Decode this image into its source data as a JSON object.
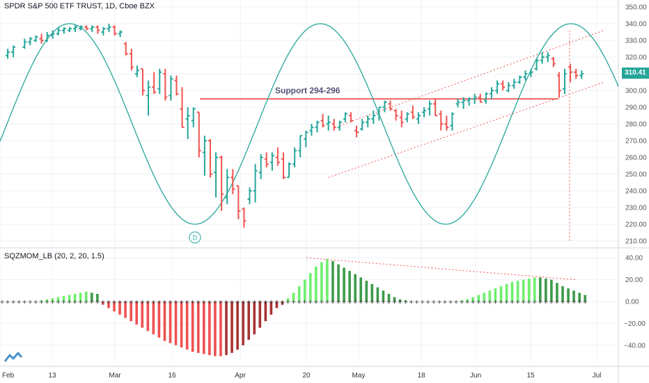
{
  "header": {
    "title": "SPDR S&P 500 ETF TRUST, 1D, Cboe BZX",
    "indicator": "SQZMOM_LB (20, 2, 20, 1.5)",
    "last_price": "310.41"
  },
  "colors": {
    "up": "#26a69a",
    "down": "#ef5350",
    "cycle": "#26a69a",
    "support": "#e53935",
    "hist_lime": "#6ef06e",
    "hist_green": "#3d9a4a",
    "hist_red": "#f05050",
    "hist_maroon": "#a83232",
    "grid": "#eef0f3"
  },
  "annotations": {
    "support_label": "Support 294-296",
    "cycle_marker": "D"
  },
  "chart_data": [
    {
      "type": "candlestick",
      "title": "SPDR S&P 500 ETF TRUST, 1D, Cboe BZX",
      "y_ticks": [
        350,
        340,
        330,
        320,
        310,
        300,
        290,
        280,
        270,
        260,
        250,
        240,
        230,
        220,
        210
      ],
      "ylim": [
        207,
        352
      ],
      "x_ticks": [
        "Feb",
        "13",
        "Mar",
        "16",
        "Apr",
        "20",
        "May",
        "18",
        "Jun",
        "15",
        "Jul"
      ],
      "bars": [
        [
          1,
          321,
          325,
          319,
          323
        ],
        [
          2,
          323,
          327,
          320,
          326
        ],
        [
          4,
          326,
          331,
          325,
          329
        ],
        [
          5,
          329,
          332,
          327,
          331
        ],
        [
          6,
          330,
          333,
          329,
          332
        ],
        [
          7,
          331,
          334,
          328,
          330
        ],
        [
          8,
          330,
          335,
          329,
          333
        ],
        [
          9,
          333,
          336,
          331,
          334
        ],
        [
          10,
          334,
          338,
          333,
          336
        ],
        [
          11,
          336,
          338,
          334,
          337
        ],
        [
          12,
          336,
          338,
          335,
          337
        ],
        [
          13,
          337,
          339,
          335,
          338
        ],
        [
          14,
          337,
          339,
          336,
          338
        ],
        [
          15,
          338,
          339,
          336,
          337
        ],
        [
          16,
          337,
          339,
          335,
          338
        ],
        [
          17,
          338,
          339,
          334,
          336
        ],
        [
          18,
          335,
          338,
          333,
          337
        ],
        [
          19,
          337,
          340,
          335,
          338
        ],
        [
          20,
          338,
          339,
          333,
          334
        ],
        [
          21,
          334,
          336,
          332,
          335
        ],
        [
          22,
          328,
          329,
          321,
          322
        ],
        [
          23,
          322,
          325,
          312,
          314
        ],
        [
          24,
          310,
          315,
          308,
          312
        ],
        [
          25,
          313,
          313,
          297,
          300
        ],
        [
          26,
          297,
          306,
          285,
          302
        ],
        [
          27,
          302,
          311,
          298,
          299
        ],
        [
          28,
          301,
          313,
          298,
          311
        ],
        [
          29,
          310,
          313,
          294,
          296
        ],
        [
          30,
          297,
          309,
          294,
          307
        ],
        [
          31,
          306,
          309,
          297,
          298
        ],
        [
          32,
          289,
          302,
          278,
          278
        ],
        [
          33,
          283,
          290,
          271,
          285
        ],
        [
          34,
          282,
          290,
          278,
          289
        ],
        [
          35,
          287,
          287,
          260,
          264
        ],
        [
          36,
          263,
          273,
          249,
          270
        ],
        [
          37,
          270,
          271,
          248,
          250
        ],
        [
          38,
          251,
          263,
          236,
          260
        ],
        [
          39,
          260,
          261,
          228,
          238
        ],
        [
          40,
          236,
          253,
          232,
          248
        ],
        [
          41,
          248,
          253,
          238,
          241
        ],
        [
          42,
          243,
          243,
          223,
          228
        ],
        [
          43,
          229,
          230,
          218,
          222
        ],
        [
          44,
          235,
          242,
          232,
          240
        ],
        [
          45,
          240,
          256,
          233,
          252
        ],
        [
          46,
          251,
          262,
          247,
          260
        ],
        [
          47,
          259,
          263,
          254,
          256
        ],
        [
          48,
          257,
          263,
          252,
          261
        ],
        [
          49,
          260,
          266,
          255,
          257
        ],
        [
          50,
          259,
          263,
          247,
          248
        ],
        [
          51,
          248,
          257,
          248,
          256
        ],
        [
          52,
          256,
          266,
          254,
          264
        ],
        [
          53,
          264,
          273,
          260,
          273
        ],
        [
          54,
          271,
          276,
          266,
          275
        ],
        [
          55,
          276,
          280,
          273,
          278
        ],
        [
          56,
          278,
          282,
          275,
          281
        ],
        [
          57,
          282,
          286,
          278,
          279
        ],
        [
          58,
          280,
          285,
          276,
          281
        ],
        [
          59,
          280,
          283,
          276,
          278
        ],
        [
          60,
          278,
          282,
          276,
          281
        ],
        [
          61,
          283,
          287,
          281,
          286
        ],
        [
          62,
          285,
          287,
          281,
          282
        ],
        [
          63,
          276,
          279,
          272,
          275
        ],
        [
          64,
          277,
          283,
          276,
          281
        ],
        [
          65,
          281,
          285,
          278,
          283
        ],
        [
          66,
          283,
          288,
          280,
          285
        ],
        [
          67,
          286,
          290,
          282,
          290
        ],
        [
          68,
          290,
          294,
          287,
          293
        ],
        [
          69,
          292,
          294,
          288,
          289
        ],
        [
          70,
          288,
          289,
          282,
          285
        ],
        [
          71,
          284,
          288,
          278,
          281
        ],
        [
          72,
          283,
          287,
          281,
          286
        ],
        [
          73,
          287,
          291,
          283,
          284
        ],
        [
          74,
          283,
          287,
          280,
          285
        ],
        [
          75,
          287,
          290,
          284,
          288
        ],
        [
          76,
          289,
          294,
          285,
          292
        ],
        [
          77,
          292,
          295,
          285,
          285
        ],
        [
          78,
          286,
          288,
          276,
          280
        ],
        [
          79,
          280,
          285,
          276,
          278
        ],
        [
          80,
          279,
          287,
          276,
          286
        ],
        [
          81,
          292,
          295,
          290,
          293
        ],
        [
          82,
          293,
          296,
          289,
          294
        ],
        [
          83,
          294,
          296,
          291,
          295
        ],
        [
          84,
          295,
          298,
          292,
          296
        ],
        [
          85,
          296,
          298,
          293,
          293
        ],
        [
          86,
          294,
          299,
          292,
          298
        ],
        [
          87,
          298,
          302,
          295,
          300
        ],
        [
          88,
          300,
          306,
          298,
          304
        ],
        [
          89,
          304,
          306,
          300,
          302
        ],
        [
          90,
          300,
          305,
          299,
          303
        ],
        [
          91,
          303,
          307,
          301,
          305
        ],
        [
          92,
          305,
          309,
          304,
          308
        ],
        [
          93,
          308,
          312,
          306,
          310
        ],
        [
          94,
          310,
          313,
          308,
          311
        ],
        [
          95,
          313,
          319,
          312,
          318
        ],
        [
          96,
          318,
          323,
          316,
          320
        ],
        [
          97,
          320,
          323,
          317,
          321
        ],
        [
          98,
          319,
          320,
          314,
          316
        ],
        [
          99,
          309,
          311,
          296,
          300
        ],
        [
          100,
          301,
          313,
          298,
          310
        ],
        [
          101,
          314,
          316,
          305,
          311
        ],
        [
          102,
          311,
          313,
          307,
          309
        ],
        [
          103,
          309,
          312,
          307,
          310
        ]
      ],
      "support_zone": [
        294,
        296
      ],
      "trend_channel": {
        "upper": [
          [
            60,
            279
          ],
          [
            107,
            336
          ]
        ],
        "lower": [
          [
            58,
            248
          ],
          [
            107,
            305
          ]
        ],
        "forecast_drop": [
          [
            106,
            336
          ],
          [
            106,
            210
          ]
        ]
      },
      "cycle_curve": {
        "amplitude_mid": 280,
        "low": 219,
        "high": 340
      }
    },
    {
      "type": "histogram",
      "title": "SQZMOM_LB (20, 2, 20, 1.5)",
      "y_ticks": [
        40,
        20,
        0,
        -20,
        -40
      ],
      "ylim": [
        -52,
        42
      ],
      "values": [
        0,
        0,
        0,
        0,
        0,
        0,
        0,
        1,
        2,
        3,
        4,
        5,
        6,
        7,
        8,
        9,
        8,
        7,
        -3,
        -6,
        -9,
        -12,
        -15,
        -18,
        -21,
        -24,
        -27,
        -30,
        -33,
        -36,
        -38,
        -40,
        -42,
        -44,
        -46,
        -47,
        -48,
        -49,
        -50,
        -50,
        -49,
        -47,
        -44,
        -40,
        -35,
        -30,
        -24,
        -18,
        -12,
        -6,
        -3,
        3,
        8,
        14,
        20,
        26,
        32,
        36,
        39,
        37,
        34,
        31,
        28,
        25,
        22,
        19,
        16,
        13,
        10,
        7,
        4,
        2,
        1,
        0,
        0,
        0,
        0,
        0,
        0,
        0,
        0,
        0,
        1,
        2,
        4,
        6,
        8,
        10,
        12,
        14,
        16,
        18,
        19,
        20,
        21,
        22,
        22,
        21,
        20,
        17,
        14,
        12,
        10,
        8,
        6
      ],
      "colors": [
        "gray",
        "gray",
        "gray",
        "gray",
        "gray",
        "gray",
        "gray",
        "lime",
        "lime",
        "lime",
        "lime",
        "lime",
        "lime",
        "lime",
        "lime",
        "lime",
        "green",
        "green",
        "red",
        "red",
        "red",
        "red",
        "red",
        "red",
        "red",
        "red",
        "red",
        "red",
        "red",
        "red",
        "red",
        "red",
        "red",
        "red",
        "red",
        "red",
        "red",
        "red",
        "red",
        "red",
        "maroon",
        "maroon",
        "maroon",
        "maroon",
        "maroon",
        "maroon",
        "maroon",
        "maroon",
        "maroon",
        "maroon",
        "maroon",
        "lime",
        "lime",
        "lime",
        "lime",
        "lime",
        "lime",
        "lime",
        "lime",
        "green",
        "green",
        "green",
        "green",
        "green",
        "green",
        "green",
        "green",
        "green",
        "green",
        "green",
        "green",
        "green",
        "green",
        "gray",
        "gray",
        "gray",
        "gray",
        "gray",
        "gray",
        "gray",
        "gray",
        "lime",
        "lime",
        "lime",
        "lime",
        "lime",
        "lime",
        "lime",
        "lime",
        "lime",
        "lime",
        "lime",
        "lime",
        "lime",
        "lime",
        "lime",
        "green",
        "green",
        "green",
        "green",
        "green",
        "green",
        "green",
        "green",
        "green"
      ],
      "divergence_line": [
        [
          58,
          40
        ],
        [
          112,
          20
        ]
      ]
    }
  ]
}
